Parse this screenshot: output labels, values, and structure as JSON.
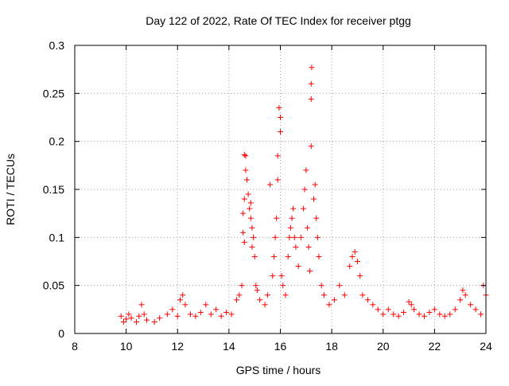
{
  "chart_data": {
    "type": "scatter",
    "title": "Day 122 of 2022, Rate Of TEC Index for receiver ptgg",
    "xlabel": "GPS time / hours",
    "ylabel": "ROTI / TECUs",
    "xlim": [
      8,
      24
    ],
    "ylim": [
      0,
      0.3
    ],
    "xticks": [
      8,
      10,
      12,
      14,
      16,
      18,
      20,
      22,
      24
    ],
    "yticks": [
      0,
      0.05,
      0.1,
      0.15,
      0.2,
      0.25,
      0.3
    ],
    "xtick_labels": [
      "8",
      "10",
      "12",
      "14",
      "16",
      "18",
      "20",
      "22",
      "24"
    ],
    "ytick_labels": [
      "0",
      "0.05",
      "0.1",
      "0.15",
      "0.2",
      "0.25",
      "0.3"
    ],
    "grid": true,
    "marker": "plus",
    "color": "#ff0000",
    "series": [
      {
        "points": [
          [
            9.8,
            0.018
          ],
          [
            9.9,
            0.012
          ],
          [
            10.0,
            0.015
          ],
          [
            10.1,
            0.02
          ],
          [
            10.2,
            0.016
          ],
          [
            10.4,
            0.012
          ],
          [
            10.5,
            0.018
          ],
          [
            10.6,
            0.03
          ],
          [
            10.7,
            0.02
          ],
          [
            10.8,
            0.014
          ],
          [
            11.1,
            0.012
          ],
          [
            11.3,
            0.016
          ],
          [
            11.6,
            0.02
          ],
          [
            11.8,
            0.025
          ],
          [
            12.0,
            0.018
          ],
          [
            12.1,
            0.035
          ],
          [
            12.2,
            0.04
          ],
          [
            12.3,
            0.03
          ],
          [
            12.5,
            0.02
          ],
          [
            12.7,
            0.018
          ],
          [
            12.9,
            0.022
          ],
          [
            13.1,
            0.03
          ],
          [
            13.3,
            0.02
          ],
          [
            13.5,
            0.025
          ],
          [
            13.7,
            0.018
          ],
          [
            13.9,
            0.022
          ],
          [
            14.1,
            0.02
          ],
          [
            14.3,
            0.035
          ],
          [
            14.4,
            0.04
          ],
          [
            14.5,
            0.05
          ],
          [
            14.55,
            0.125
          ],
          [
            14.6,
            0.14
          ],
          [
            14.6,
            0.186
          ],
          [
            14.65,
            0.185
          ],
          [
            14.65,
            0.17
          ],
          [
            14.7,
            0.16
          ],
          [
            14.55,
            0.105
          ],
          [
            14.6,
            0.095
          ],
          [
            14.75,
            0.145
          ],
          [
            14.8,
            0.13
          ],
          [
            14.85,
            0.12
          ],
          [
            14.9,
            0.11
          ],
          [
            14.95,
            0.1
          ],
          [
            14.85,
            0.136
          ],
          [
            14.9,
            0.09
          ],
          [
            15.0,
            0.08
          ],
          [
            15.05,
            0.05
          ],
          [
            15.1,
            0.045
          ],
          [
            15.2,
            0.035
          ],
          [
            15.4,
            0.03
          ],
          [
            15.5,
            0.04
          ],
          [
            15.6,
            0.155
          ],
          [
            15.7,
            0.06
          ],
          [
            15.75,
            0.08
          ],
          [
            15.8,
            0.1
          ],
          [
            15.85,
            0.12
          ],
          [
            15.9,
            0.16
          ],
          [
            15.9,
            0.185
          ],
          [
            15.95,
            0.235
          ],
          [
            16.0,
            0.225
          ],
          [
            16.0,
            0.21
          ],
          [
            16.05,
            0.06
          ],
          [
            16.1,
            0.05
          ],
          [
            16.2,
            0.04
          ],
          [
            16.3,
            0.08
          ],
          [
            16.35,
            0.1
          ],
          [
            16.4,
            0.11
          ],
          [
            16.45,
            0.12
          ],
          [
            16.5,
            0.13
          ],
          [
            16.55,
            0.1
          ],
          [
            16.6,
            0.09
          ],
          [
            16.7,
            0.07
          ],
          [
            16.8,
            0.1
          ],
          [
            16.9,
            0.13
          ],
          [
            16.95,
            0.15
          ],
          [
            17.0,
            0.17
          ],
          [
            17.05,
            0.11
          ],
          [
            17.1,
            0.09
          ],
          [
            17.15,
            0.065
          ],
          [
            17.2,
            0.195
          ],
          [
            17.2,
            0.244
          ],
          [
            17.2,
            0.26
          ],
          [
            17.22,
            0.277
          ],
          [
            17.3,
            0.14
          ],
          [
            17.35,
            0.155
          ],
          [
            17.4,
            0.12
          ],
          [
            17.45,
            0.1
          ],
          [
            17.5,
            0.08
          ],
          [
            17.6,
            0.05
          ],
          [
            17.7,
            0.04
          ],
          [
            17.9,
            0.03
          ],
          [
            18.1,
            0.035
          ],
          [
            18.3,
            0.05
          ],
          [
            18.5,
            0.04
          ],
          [
            18.7,
            0.07
          ],
          [
            18.8,
            0.08
          ],
          [
            18.9,
            0.085
          ],
          [
            19.0,
            0.075
          ],
          [
            19.1,
            0.06
          ],
          [
            19.2,
            0.04
          ],
          [
            19.4,
            0.035
          ],
          [
            19.6,
            0.03
          ],
          [
            19.8,
            0.025
          ],
          [
            20.0,
            0.02
          ],
          [
            20.2,
            0.025
          ],
          [
            20.4,
            0.02
          ],
          [
            20.6,
            0.018
          ],
          [
            20.8,
            0.022
          ],
          [
            21.0,
            0.033
          ],
          [
            21.1,
            0.03
          ],
          [
            21.2,
            0.025
          ],
          [
            21.4,
            0.02
          ],
          [
            21.6,
            0.018
          ],
          [
            21.8,
            0.022
          ],
          [
            22.0,
            0.025
          ],
          [
            22.2,
            0.02
          ],
          [
            22.4,
            0.018
          ],
          [
            22.6,
            0.02
          ],
          [
            22.8,
            0.025
          ],
          [
            23.0,
            0.035
          ],
          [
            23.1,
            0.045
          ],
          [
            23.2,
            0.04
          ],
          [
            23.4,
            0.03
          ],
          [
            23.6,
            0.025
          ],
          [
            23.8,
            0.02
          ],
          [
            23.9,
            0.05
          ],
          [
            24.0,
            0.04
          ]
        ]
      }
    ]
  }
}
